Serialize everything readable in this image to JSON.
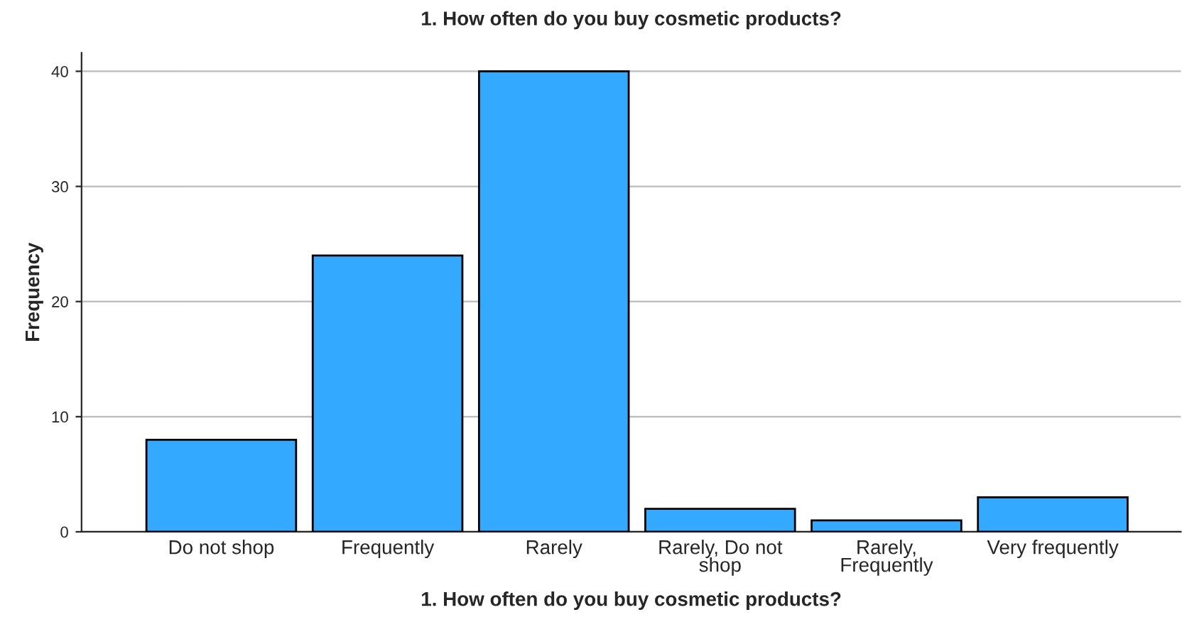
{
  "chart_data": {
    "type": "bar",
    "title": "1. How often do you buy cosmetic products?",
    "xlabel": "1. How often do you buy cosmetic products?",
    "ylabel": "Frequency",
    "categories": [
      "Do not shop",
      "Frequently",
      "Rarely",
      "Rarely, Do not shop",
      "Rarely, Frequently",
      "Very frequently"
    ],
    "values": [
      8,
      24,
      40,
      2,
      1,
      3
    ],
    "color": "#33aaff",
    "ylim": [
      0,
      41.6
    ],
    "yticks": [
      0,
      10,
      20,
      30,
      40
    ],
    "grid": "y",
    "legend": false
  }
}
